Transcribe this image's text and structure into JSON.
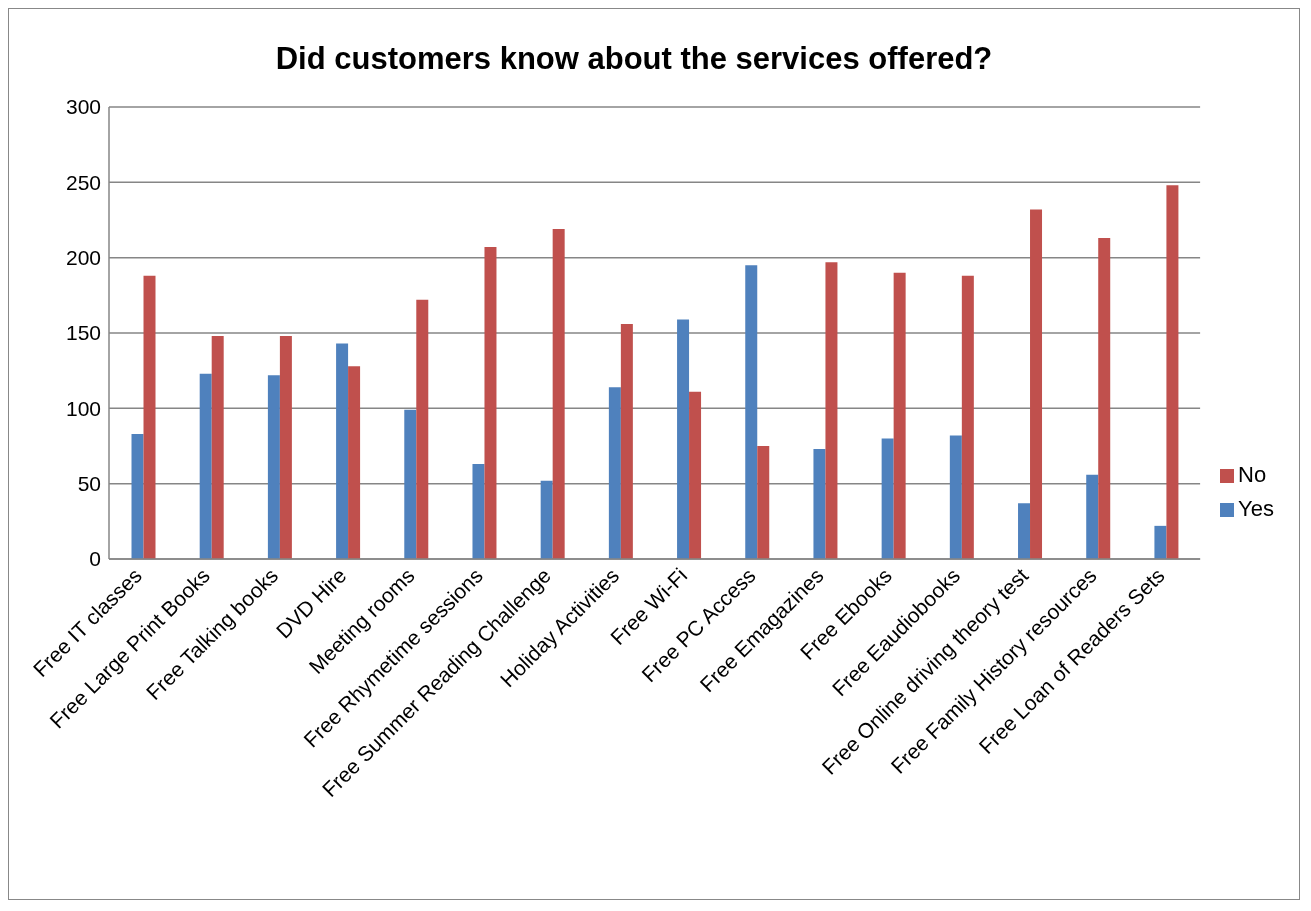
{
  "chart_data": {
    "type": "bar",
    "title": "Did customers know about the services offered?",
    "categories": [
      "Free IT classes",
      "Free Large Print Books",
      "Free Talking books",
      "DVD Hire",
      "Meeting rooms",
      "Free Rhymetime sessions",
      "Free Summer Reading Challenge",
      "Holiday Activities",
      "Free Wi-Fi",
      "Free PC Access",
      "Free Emagazines",
      "Free Ebooks",
      "Free Eaudiobooks",
      "Free Online driving theory test",
      "Free Family History resources",
      "Free Loan of Readers Sets"
    ],
    "series": [
      {
        "name": "Yes",
        "color": "#4f81bd",
        "values": [
          83,
          123,
          122,
          143,
          99,
          63,
          52,
          114,
          159,
          195,
          73,
          80,
          82,
          37,
          56,
          22
        ]
      },
      {
        "name": "No",
        "color": "#c0504d",
        "values": [
          188,
          148,
          148,
          128,
          172,
          207,
          219,
          156,
          111,
          75,
          197,
          190,
          188,
          232,
          213,
          248
        ]
      }
    ],
    "ylim": [
      0,
      300
    ],
    "yticks": [
      0,
      50,
      100,
      150,
      200,
      250,
      300
    ],
    "grid": "y",
    "legend": "right"
  }
}
